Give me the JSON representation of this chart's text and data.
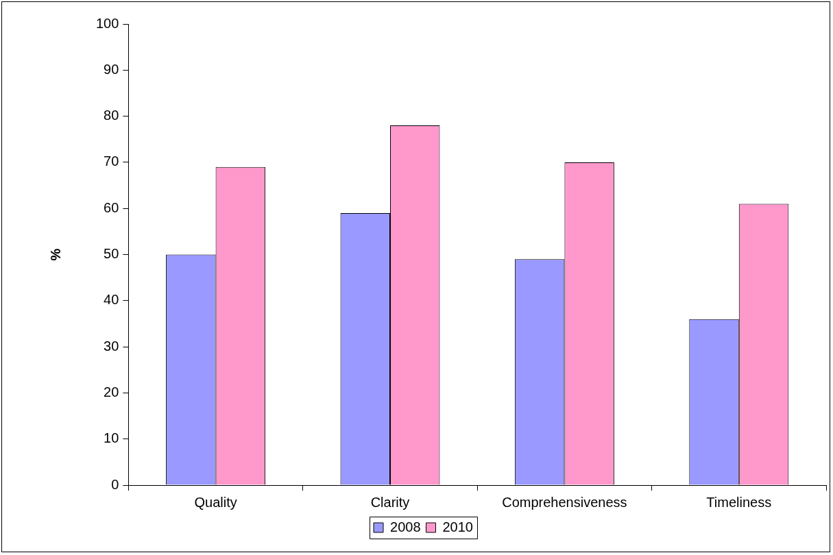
{
  "chart_data": {
    "type": "bar",
    "ylabel": "%",
    "categories": [
      "Quality",
      "Clarity",
      "Comprehensiveness",
      "Timeliness"
    ],
    "series": [
      {
        "name": "2008",
        "color": "#9999ff",
        "values": [
          50,
          59,
          49,
          36
        ]
      },
      {
        "name": "2010",
        "color": "#ff99cc",
        "values": [
          69,
          78,
          70,
          61
        ]
      }
    ],
    "ylim": [
      0,
      100
    ],
    "yticks": [
      0,
      10,
      20,
      30,
      40,
      50,
      60,
      70,
      80,
      90,
      100
    ],
    "grid": false,
    "legend": "bottom"
  }
}
